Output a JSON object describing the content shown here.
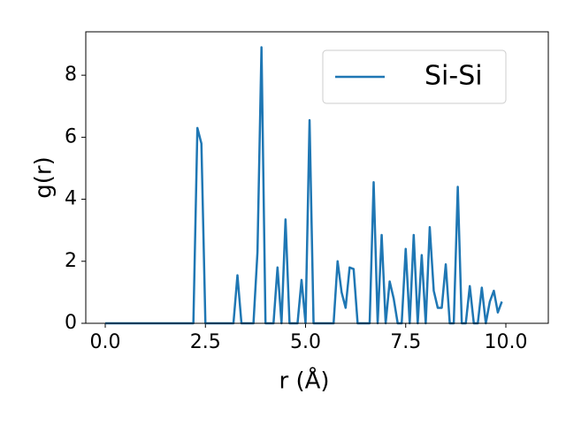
{
  "chart_data": {
    "type": "line",
    "xlabel": "r (Å)",
    "ylabel": "g(r)",
    "x": [
      0.0,
      0.1,
      0.2,
      0.3,
      0.4,
      0.5,
      0.6,
      0.7,
      0.8,
      0.9,
      1.0,
      1.1,
      1.2,
      1.3,
      1.4,
      1.5,
      1.6,
      1.7,
      1.8,
      1.9,
      2.0,
      2.1,
      2.2,
      2.3,
      2.4,
      2.5,
      2.6,
      2.7,
      2.8,
      2.9,
      3.0,
      3.1,
      3.2,
      3.3,
      3.4,
      3.5,
      3.6,
      3.7,
      3.8,
      3.9,
      4.0,
      4.1,
      4.2,
      4.3,
      4.4,
      4.5,
      4.6,
      4.7,
      4.8,
      4.9,
      5.0,
      5.1,
      5.2,
      5.3,
      5.4,
      5.5,
      5.6,
      5.7,
      5.8,
      5.9,
      6.0,
      6.1,
      6.2,
      6.3,
      6.4,
      6.5,
      6.6,
      6.7,
      6.8,
      6.9,
      7.0,
      7.1,
      7.2,
      7.3,
      7.4,
      7.5,
      7.6,
      7.7,
      7.8,
      7.9,
      8.0,
      8.1,
      8.2,
      8.3,
      8.4,
      8.5,
      8.6,
      8.7,
      8.8,
      8.9,
      9.0,
      9.1,
      9.2,
      9.3,
      9.4,
      9.5,
      9.6,
      9.7,
      9.8,
      9.9
    ],
    "series": [
      {
        "name": "Si-Si",
        "color": "#1f77b4",
        "values": [
          0,
          0,
          0,
          0,
          0,
          0,
          0,
          0,
          0,
          0,
          0,
          0,
          0,
          0,
          0,
          0,
          0,
          0,
          0,
          0,
          0,
          0,
          0,
          6.3,
          5.8,
          0,
          0,
          0,
          0,
          0,
          0,
          0,
          0,
          1.55,
          0,
          0,
          0,
          0,
          2.3,
          8.9,
          0,
          0,
          0,
          1.8,
          0,
          3.35,
          0,
          0,
          0,
          1.4,
          0,
          6.55,
          0,
          0,
          0,
          0,
          0,
          0,
          2.0,
          1.0,
          0.5,
          1.8,
          1.75,
          0,
          0,
          0,
          0,
          4.55,
          0,
          2.85,
          0,
          1.35,
          0.8,
          0,
          0,
          2.4,
          0,
          2.85,
          0,
          2.2,
          0,
          3.1,
          1.05,
          0.5,
          0.5,
          1.9,
          0,
          0,
          4.4,
          0,
          0,
          1.2,
          0,
          0,
          1.15,
          0,
          0.7,
          1.05,
          0.35,
          0.7
        ]
      }
    ],
    "xlim": [
      -0.486,
      11.06
    ],
    "ylim": [
      0,
      9.4
    ],
    "xticks": [
      {
        "value": 0,
        "label": "0.0"
      },
      2.5,
      {
        "value": 5,
        "label": "5.0"
      },
      7.5,
      {
        "value": 10,
        "label": "10.0"
      }
    ],
    "yticks": [
      0,
      2,
      4,
      6,
      8
    ],
    "grid": false,
    "legend": "upper right"
  }
}
